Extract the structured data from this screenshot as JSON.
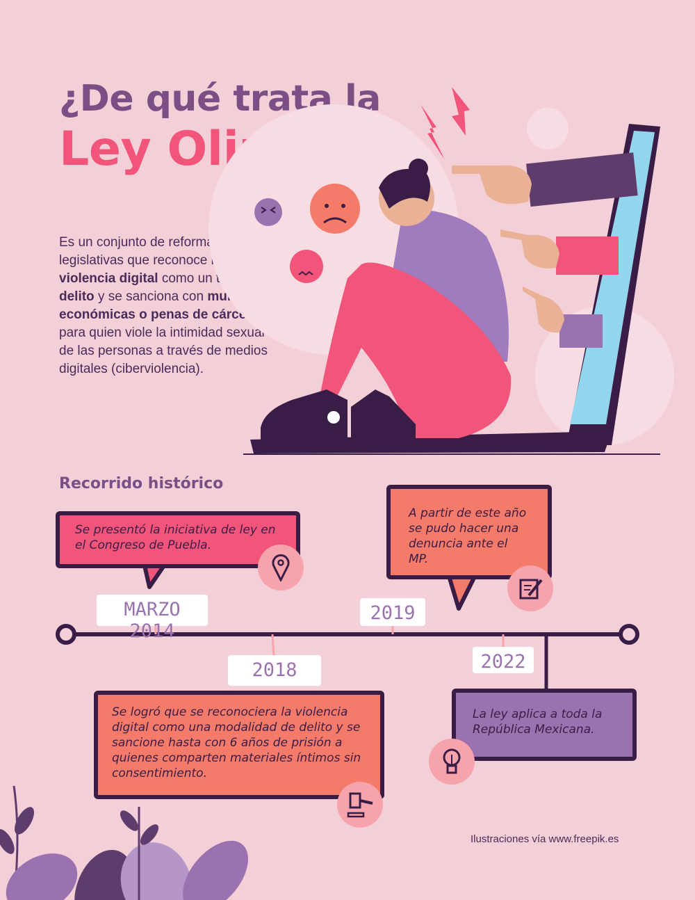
{
  "header": {
    "title_line1": "¿De qué trata la",
    "title_line2": "Ley Olimpia?"
  },
  "intro": {
    "parts": [
      "Es un conjunto de reformas legislativas que reconoce la ",
      "violencia digital",
      " como un tipo de ",
      "delito",
      " y se sanciona con ",
      "multas económicas o penas de cárcel",
      " para quien viole la intimidad sexual de las personas a través de medios digitales (ciberviolencia)."
    ]
  },
  "timeline": {
    "heading": "Recorrido histórico",
    "events": [
      {
        "date": "MARZO 2014",
        "text": "Se presentó la iniciativa de ley en el Congreso de Puebla.",
        "icon": "map-pin-icon",
        "color": "#f2557a"
      },
      {
        "date": "2018",
        "text": "Se logró que se reconociera la violencia digital como una modalidad de delito y se sancione hasta con 6 años de prisión a quienes comparten materiales íntimos sin consentimiento.",
        "icon": "gavel-icon",
        "color": "#f47a6a"
      },
      {
        "date": "2019",
        "text": "A partir de este año se pudo hacer una denuncia ante el MP.",
        "icon": "document-pen-icon",
        "color": "#f47a6a"
      },
      {
        "date": "2022",
        "text": "La ley aplica a toda la República Mexicana.",
        "icon": "lightbulb-icon",
        "color": "#9b72b0"
      }
    ]
  },
  "footer": {
    "credit": "Ilustraciones vía www.freepik.es"
  },
  "colors": {
    "background": "#f3cfd7",
    "purple": "#7b4f86",
    "pink": "#f2557a",
    "dark": "#3a1d47",
    "coral": "#f47a6a"
  }
}
